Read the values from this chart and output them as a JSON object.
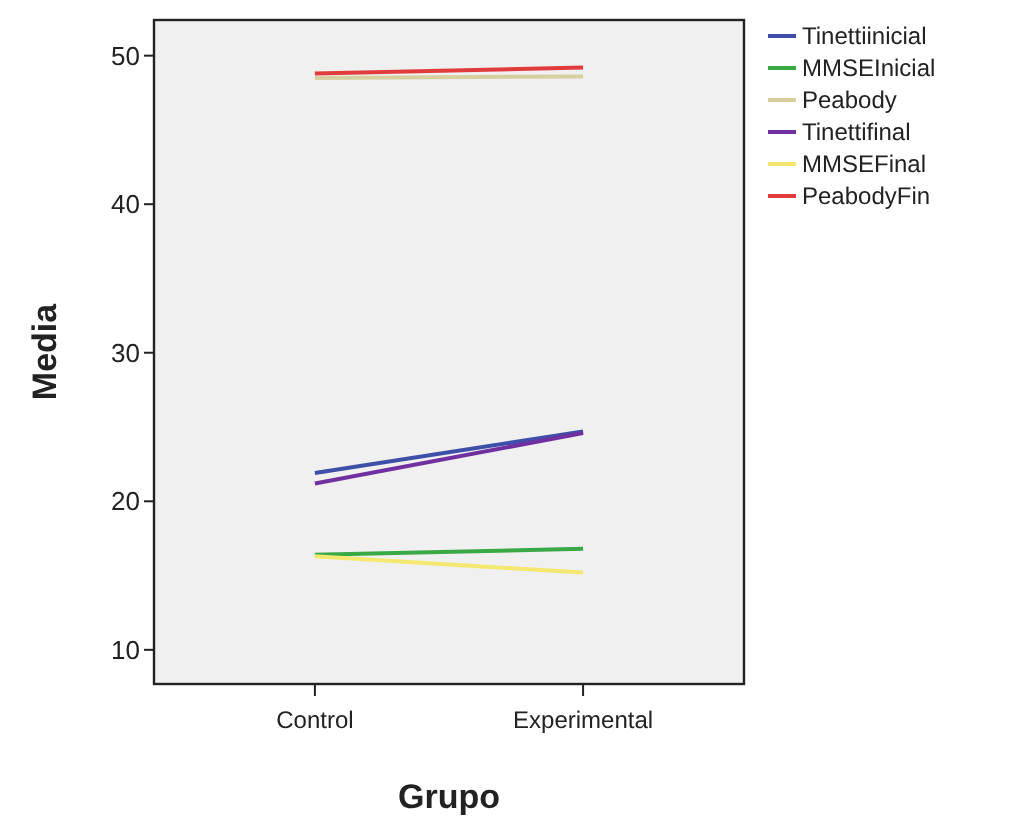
{
  "chart_data": {
    "type": "line",
    "xlabel": "Grupo",
    "ylabel": "Media",
    "categories": [
      "Control",
      "Experimental"
    ],
    "series": [
      {
        "name": "Tinettiinicial",
        "color": "#3e4fa8",
        "values": [
          21.9,
          24.7
        ]
      },
      {
        "name": "MMSEInicial",
        "color": "#3aa845",
        "values": [
          16.4,
          16.8
        ]
      },
      {
        "name": "Peabody",
        "color": "#d6d0a0",
        "values": [
          48.5,
          48.6
        ]
      },
      {
        "name": "Tinettifinal",
        "color": "#7030a0",
        "values": [
          21.2,
          24.6
        ]
      },
      {
        "name": "MMSEFinal",
        "color": "#f5e870",
        "values": [
          16.3,
          15.2
        ]
      },
      {
        "name": "PeabodyFin",
        "color": "#e03c3c",
        "values": [
          48.8,
          49.2
        ]
      }
    ],
    "ylim": [
      7.7,
      52.4
    ],
    "yticks": [
      10,
      20,
      30,
      40,
      50
    ],
    "grid": false,
    "legend": "top right",
    "marker": "none",
    "line_style": "solid"
  }
}
